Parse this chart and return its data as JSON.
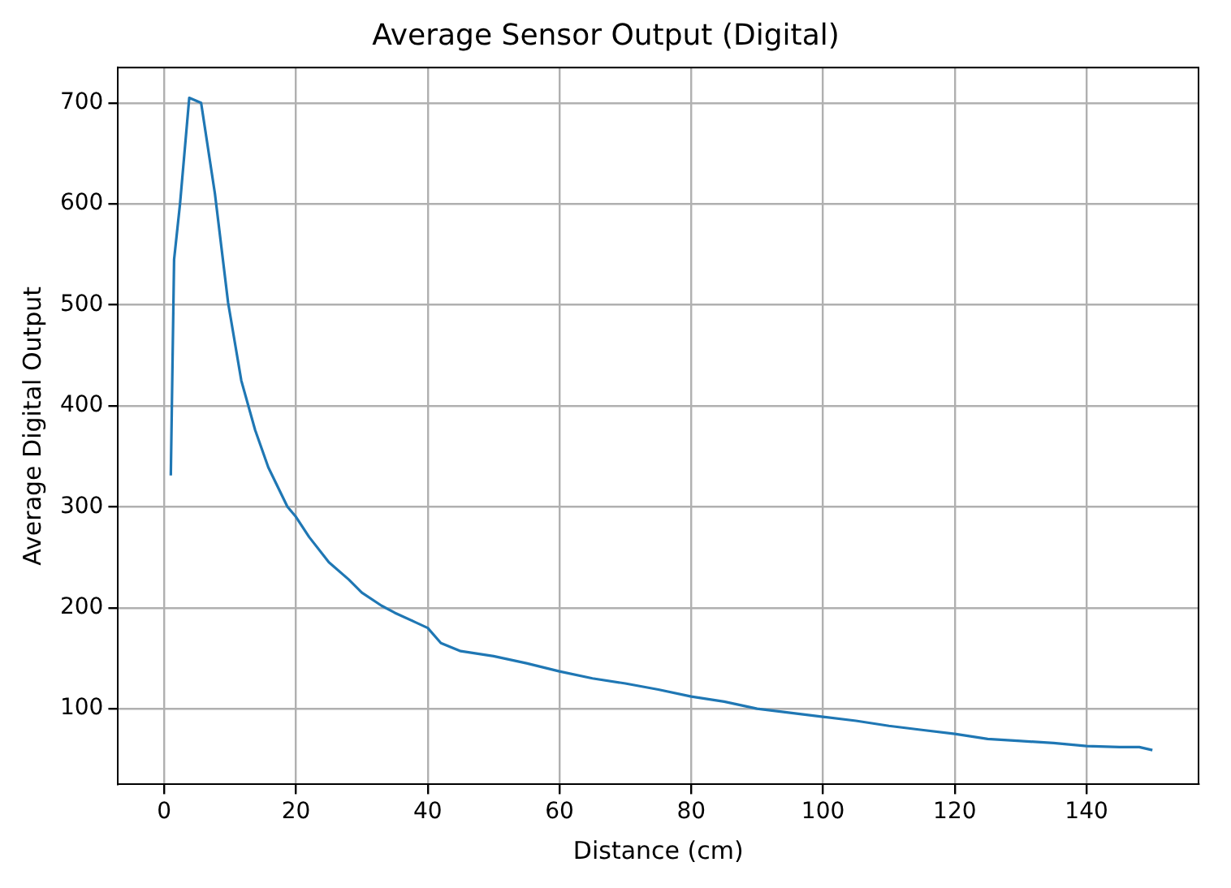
{
  "chart_data": {
    "type": "line",
    "title": "Average Sensor Output (Digital)",
    "xlabel": "Distance (cm)",
    "ylabel": "Average Digital Output",
    "series": [
      {
        "color": "#1f77b4",
        "x": [
          1,
          1.5,
          2.4,
          3.8,
          5.6,
          7.7,
          9.7,
          11.7,
          13.8,
          15.8,
          18.7,
          20,
          22,
          25,
          28,
          30,
          33,
          35,
          38,
          40,
          42,
          45,
          50,
          55,
          60,
          65,
          70,
          75,
          80,
          85,
          90,
          95,
          100,
          105,
          110,
          115,
          120,
          125,
          130,
          135,
          140,
          145,
          148,
          150
        ],
        "values": [
          331,
          545,
          600,
          705,
          700,
          610,
          502,
          425,
          376,
          339,
          300,
          290,
          270,
          245,
          228,
          215,
          202,
          195,
          186,
          180,
          165,
          157,
          152,
          145,
          137,
          130,
          125,
          119,
          112,
          107,
          100,
          96,
          92,
          88,
          83,
          79,
          75,
          70,
          68,
          66,
          63,
          62,
          62,
          59
        ]
      }
    ],
    "xlim": [
      -7,
      157
    ],
    "ylim": [
      25,
      735
    ],
    "xticks": [
      0,
      20,
      40,
      60,
      80,
      100,
      120,
      140
    ],
    "yticks": [
      100,
      200,
      300,
      400,
      500,
      600,
      700
    ],
    "grid": true,
    "legend": false,
    "marker": "none",
    "line_style": "solid"
  }
}
